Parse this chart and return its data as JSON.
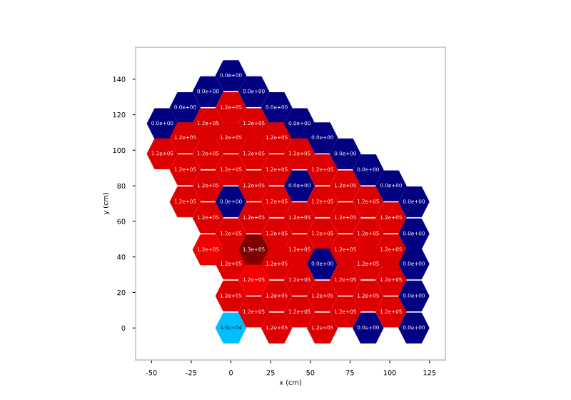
{
  "chart_data": {
    "type": "scatter",
    "xlabel": "x (cm)",
    "ylabel": "y (cm)",
    "xlim": [
      -60,
      135
    ],
    "ylim": [
      -18,
      158
    ],
    "xticks": [
      -50,
      -25,
      0,
      25,
      50,
      75,
      100,
      125
    ],
    "yticks": [
      0,
      20,
      40,
      60,
      80,
      100,
      120,
      140
    ],
    "grid": false,
    "x": [
      -43.2,
      -43.2,
      -28.8,
      -28.8,
      -28.8,
      -28.8,
      -14.4,
      -14.4,
      -14.4,
      -14.4,
      -14.4,
      -14.4,
      0,
      0,
      0,
      0,
      0,
      0,
      0,
      0,
      0,
      14.4,
      14.4,
      14.4,
      14.4,
      14.4,
      14.4,
      14.4,
      14.4,
      28.8,
      28.8,
      28.8,
      28.8,
      28.8,
      28.8,
      28.8,
      28.8,
      43.2,
      43.2,
      43.2,
      43.2,
      43.2,
      43.2,
      43.2,
      57.6,
      57.6,
      57.6,
      57.6,
      57.6,
      57.6,
      57.6,
      72,
      72,
      72,
      72,
      72,
      72,
      86.4,
      86.4,
      86.4,
      86.4,
      86.4,
      86.4,
      100.8,
      100.8,
      100.8,
      100.8,
      100.8,
      115.2,
      115.2,
      115.2,
      115.2,
      115.2
    ],
    "values": [
      115,
      98,
      124,
      107,
      89,
      71,
      133,
      115,
      98,
      80,
      62,
      44,
      142,
      124,
      107,
      89,
      71,
      53,
      36,
      18,
      0,
      133,
      115,
      98,
      80,
      62,
      44,
      27,
      9,
      124,
      107,
      89,
      71,
      53,
      36,
      18,
      0,
      115,
      98,
      80,
      62,
      44,
      27,
      9,
      107,
      89,
      71,
      53,
      36,
      18,
      0,
      98,
      80,
      62,
      44,
      27,
      9,
      89,
      71,
      53,
      36,
      18,
      0,
      80,
      62,
      44,
      27,
      9,
      71,
      53,
      36,
      18,
      0
    ],
    "colors": [
      "#000080",
      "#dd0000",
      "#000080",
      "#dd0000",
      "#dd0000",
      "#dd0000",
      "#000080",
      "#dd0000",
      "#dd0000",
      "#dd0000",
      "#dd0000",
      "#f20000",
      "#000080",
      "#dd0000",
      "#dd0000",
      "#dd0000",
      "#000080",
      "#dd0000",
      "#dd0000",
      "#dd0000",
      "#00bfff",
      "#000080",
      "#dd0000",
      "#dd0000",
      "#dd0000",
      "#dd0000",
      "#800000",
      "#f20000",
      "#dd0000",
      "#000080",
      "#dd0000",
      "#dd0000",
      "#dd0000",
      "#dd0000",
      "#dd0000",
      "#dd0000",
      "#dd0000",
      "#000080",
      "#dd0000",
      "#000080",
      "#dd0000",
      "#dd0000",
      "#dd0000",
      "#dd0000",
      "#000080",
      "#dd0000",
      "#dd0000",
      "#dd0000",
      "#000080",
      "#dd0000",
      "#dd0000",
      "#000080",
      "#dd0000",
      "#dd0000",
      "#dd0000",
      "#dd0000",
      "#dd0000",
      "#000080",
      "#dd0000",
      "#dd0000",
      "#dd0000",
      "#dd0000",
      "#000080",
      "#000080",
      "#dd0000",
      "#dd0000",
      "#dd0000",
      "#dd0000",
      "#000080",
      "#000080",
      "#000080",
      "#000080",
      "#000080"
    ],
    "annotations": [
      {
        "text": "0.0e+00",
        "x": -43.2,
        "y": 115
      },
      {
        "text": "1.2e+05",
        "x": -43.2,
        "y": 98
      },
      {
        "text": "0.0e+00",
        "x": -28.8,
        "y": 124
      },
      {
        "text": "1.2e+05",
        "x": -28.8,
        "y": 107
      },
      {
        "text": "1.2e+05",
        "x": -28.8,
        "y": 89
      },
      {
        "text": "1.2e+05",
        "x": -28.8,
        "y": 71
      },
      {
        "text": "0.0e+00",
        "x": -14.4,
        "y": 133
      },
      {
        "text": "1.2e+05",
        "x": -14.4,
        "y": 115
      },
      {
        "text": "1.2e+05",
        "x": -14.4,
        "y": 98
      },
      {
        "text": "1.2e+05",
        "x": -14.4,
        "y": 80
      },
      {
        "text": "1.2e+05",
        "x": -14.4,
        "y": 62
      },
      {
        "text": "1.2e+05",
        "x": -14.4,
        "y": 44
      },
      {
        "text": "0.0e+00",
        "x": 0,
        "y": 142
      },
      {
        "text": "1.2e+05",
        "x": 0,
        "y": 124
      },
      {
        "text": "1.2e+05",
        "x": 0,
        "y": 107
      },
      {
        "text": "1.2e+05",
        "x": 0,
        "y": 89
      },
      {
        "text": "0.0e+00",
        "x": 0,
        "y": 71
      },
      {
        "text": "1.2e+05",
        "x": 0,
        "y": 53
      },
      {
        "text": "1.2e+05",
        "x": 0,
        "y": 36
      },
      {
        "text": "1.2e+05",
        "x": 0,
        "y": 18
      },
      {
        "text": "4.0e+04",
        "x": 0,
        "y": 0
      },
      {
        "text": "0.0e+00",
        "x": 14.4,
        "y": 133
      },
      {
        "text": "1.2e+05",
        "x": 14.4,
        "y": 115
      },
      {
        "text": "1.2e+05",
        "x": 14.4,
        "y": 98
      },
      {
        "text": "1.2e+05",
        "x": 14.4,
        "y": 80
      },
      {
        "text": "1.2e+05",
        "x": 14.4,
        "y": 62
      },
      {
        "text": "1.3e+05",
        "x": 14.4,
        "y": 44
      },
      {
        "text": "1.2e+05",
        "x": 14.4,
        "y": 27
      },
      {
        "text": "1.2e+05",
        "x": 14.4,
        "y": 9
      },
      {
        "text": "0.0e+00",
        "x": 28.8,
        "y": 124
      },
      {
        "text": "1.2e+05",
        "x": 28.8,
        "y": 107
      },
      {
        "text": "1.2e+05",
        "x": 28.8,
        "y": 89
      },
      {
        "text": "1.2e+05",
        "x": 28.8,
        "y": 71
      },
      {
        "text": "1.2e+05",
        "x": 28.8,
        "y": 53
      },
      {
        "text": "1.2e+05",
        "x": 28.8,
        "y": 36
      },
      {
        "text": "1.2e+05",
        "x": 28.8,
        "y": 18
      },
      {
        "text": "1.2e+05",
        "x": 28.8,
        "y": 0
      },
      {
        "text": "0.0e+00",
        "x": 43.2,
        "y": 115
      },
      {
        "text": "1.2e+05",
        "x": 43.2,
        "y": 98
      },
      {
        "text": "0.0e+00",
        "x": 43.2,
        "y": 80
      },
      {
        "text": "1.2e+05",
        "x": 43.2,
        "y": 62
      },
      {
        "text": "1.2e+05",
        "x": 43.2,
        "y": 44
      },
      {
        "text": "1.2e+05",
        "x": 43.2,
        "y": 27
      },
      {
        "text": "1.2e+05",
        "x": 43.2,
        "y": 9
      },
      {
        "text": "0.0e+00",
        "x": 57.6,
        "y": 107
      },
      {
        "text": "1.2e+05",
        "x": 57.6,
        "y": 89
      },
      {
        "text": "1.2e+05",
        "x": 57.6,
        "y": 71
      },
      {
        "text": "1.2e+05",
        "x": 57.6,
        "y": 53
      },
      {
        "text": "0.0e+00",
        "x": 57.6,
        "y": 36
      },
      {
        "text": "1.2e+05",
        "x": 57.6,
        "y": 18
      },
      {
        "text": "1.2e+05",
        "x": 57.6,
        "y": 0
      },
      {
        "text": "0.0e+00",
        "x": 72,
        "y": 98
      },
      {
        "text": "1.2e+05",
        "x": 72,
        "y": 80
      },
      {
        "text": "1.2e+05",
        "x": 72,
        "y": 62
      },
      {
        "text": "1.2e+05",
        "x": 72,
        "y": 44
      },
      {
        "text": "1.2e+05",
        "x": 72,
        "y": 27
      },
      {
        "text": "1.2e+05",
        "x": 72,
        "y": 9
      },
      {
        "text": "0.0e+00",
        "x": 86.4,
        "y": 89
      },
      {
        "text": "1.2e+05",
        "x": 86.4,
        "y": 71
      },
      {
        "text": "1.2e+05",
        "x": 86.4,
        "y": 53
      },
      {
        "text": "1.2e+05",
        "x": 86.4,
        "y": 36
      },
      {
        "text": "1.2e+05",
        "x": 86.4,
        "y": 18
      },
      {
        "text": "0.0e+00",
        "x": 86.4,
        "y": 0
      },
      {
        "text": "0.0e+00",
        "x": 100.8,
        "y": 80
      },
      {
        "text": "1.2e+05",
        "x": 100.8,
        "y": 62
      },
      {
        "text": "1.2e+05",
        "x": 100.8,
        "y": 44
      },
      {
        "text": "1.2e+05",
        "x": 100.8,
        "y": 27
      },
      {
        "text": "1.2e+05",
        "x": 100.8,
        "y": 9
      },
      {
        "text": "0.0e+00",
        "x": 115.2,
        "y": 71
      },
      {
        "text": "0.0e+00",
        "x": 115.2,
        "y": 53
      },
      {
        "text": "0.0e+00",
        "x": 115.2,
        "y": 36
      },
      {
        "text": "0.0e+00",
        "x": 115.2,
        "y": 18
      },
      {
        "text": "0.0e+00",
        "x": 115.2,
        "y": 0
      }
    ]
  }
}
